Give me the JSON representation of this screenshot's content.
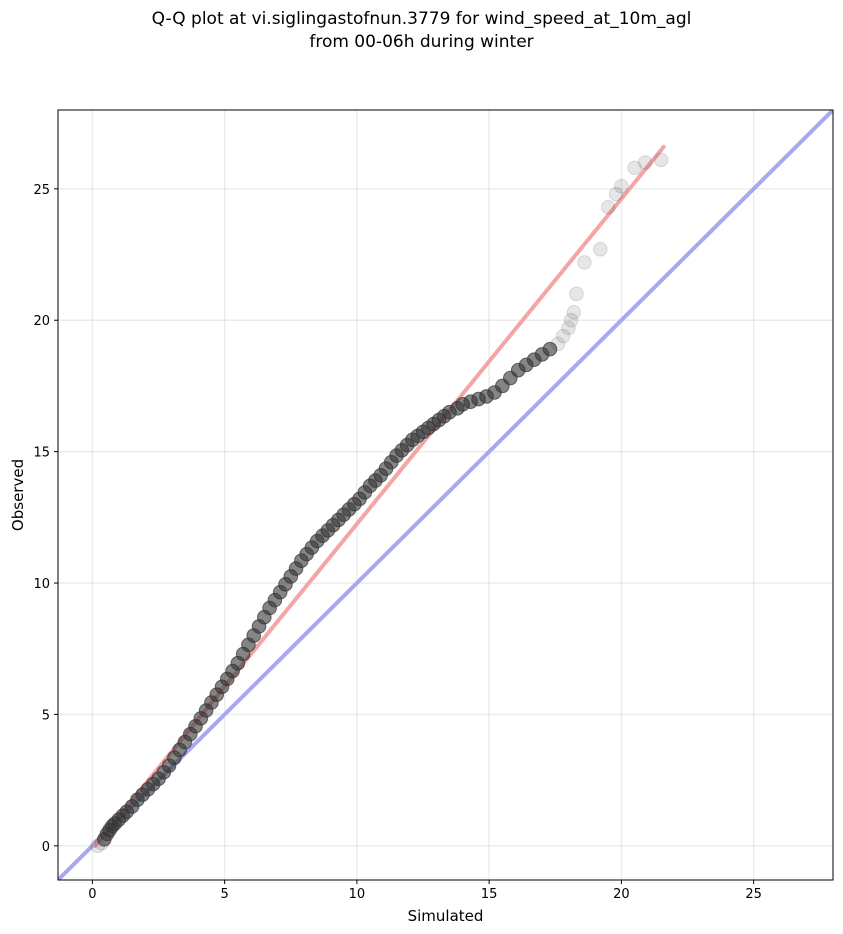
{
  "chart_data": {
    "type": "scatter",
    "title": "Q-Q plot at vi.siglingastofnun.3779 for wind_speed_at_10m_agl",
    "subtitle": "from 00-06h during winter",
    "xlabel": "Simulated",
    "ylabel": "Observed",
    "xlim": [
      -1.3,
      28.0
    ],
    "ylim": [
      -1.3,
      28.0
    ],
    "xticks": [
      0,
      5,
      10,
      15,
      20,
      25
    ],
    "yticks": [
      0,
      5,
      10,
      15,
      20,
      25
    ],
    "xtick_labels": [
      "0",
      "5",
      "10",
      "15",
      "20",
      "25"
    ],
    "ytick_labels": [
      "0",
      "5",
      "10",
      "15",
      "20",
      "25"
    ],
    "grid": true,
    "reference_lines": [
      {
        "role": "one-to-one",
        "color": "#a8a8f0",
        "x": [
          -1.3,
          28.0
        ],
        "y": [
          -1.3,
          28.0
        ]
      },
      {
        "role": "fit",
        "color": "#f4a6a6",
        "x": [
          0.1,
          21.6
        ],
        "y": [
          0.0,
          26.6
        ]
      }
    ],
    "point_color": "#333333",
    "series": [
      {
        "x": [
          0.2,
          0.35,
          0.45,
          0.55,
          0.65,
          0.75,
          0.85,
          1.0,
          1.15,
          1.3,
          1.5,
          1.7,
          1.9,
          2.1,
          2.3,
          2.5,
          2.7,
          2.9,
          3.1,
          3.3,
          3.5,
          3.7,
          3.9,
          4.1,
          4.3,
          4.5,
          4.7,
          4.9,
          5.1,
          5.3,
          5.5,
          5.7,
          5.9,
          6.1,
          6.3,
          6.5,
          6.7,
          6.9,
          7.1,
          7.3,
          7.5,
          7.7,
          7.9,
          8.1,
          8.3,
          8.5,
          8.7,
          8.9,
          9.1,
          9.3,
          9.5,
          9.7,
          9.9,
          10.1,
          10.3,
          10.5,
          10.7,
          10.9,
          11.1,
          11.3,
          11.5,
          11.7,
          11.9,
          12.1,
          12.3,
          12.5,
          12.7,
          12.9,
          13.1,
          13.3,
          13.5,
          13.8,
          14.0,
          14.3,
          14.6,
          14.9,
          15.2,
          15.5,
          15.8,
          16.1,
          16.4,
          16.7,
          17.0,
          17.3,
          17.6,
          17.8,
          18.0,
          18.1,
          18.2,
          18.3,
          18.6,
          19.2,
          19.5,
          19.8,
          20.0,
          20.5,
          20.9,
          21.5
        ],
        "y": [
          0.0,
          0.1,
          0.25,
          0.45,
          0.6,
          0.75,
          0.85,
          1.0,
          1.15,
          1.3,
          1.5,
          1.75,
          1.95,
          2.15,
          2.35,
          2.55,
          2.8,
          3.05,
          3.35,
          3.65,
          3.95,
          4.25,
          4.55,
          4.85,
          5.15,
          5.45,
          5.75,
          6.05,
          6.35,
          6.65,
          6.95,
          7.3,
          7.65,
          8.0,
          8.35,
          8.7,
          9.05,
          9.35,
          9.65,
          9.95,
          10.25,
          10.55,
          10.85,
          11.1,
          11.35,
          11.6,
          11.8,
          12.0,
          12.2,
          12.4,
          12.6,
          12.8,
          13.0,
          13.2,
          13.45,
          13.7,
          13.9,
          14.1,
          14.35,
          14.6,
          14.85,
          15.05,
          15.25,
          15.45,
          15.6,
          15.75,
          15.9,
          16.05,
          16.2,
          16.35,
          16.5,
          16.65,
          16.8,
          16.9,
          17.0,
          17.1,
          17.25,
          17.5,
          17.8,
          18.1,
          18.3,
          18.5,
          18.7,
          18.9,
          19.1,
          19.4,
          19.7,
          20.0,
          20.3,
          21.0,
          22.2,
          22.7,
          24.3,
          24.8,
          25.1,
          25.8,
          26.0,
          26.1
        ]
      }
    ]
  }
}
